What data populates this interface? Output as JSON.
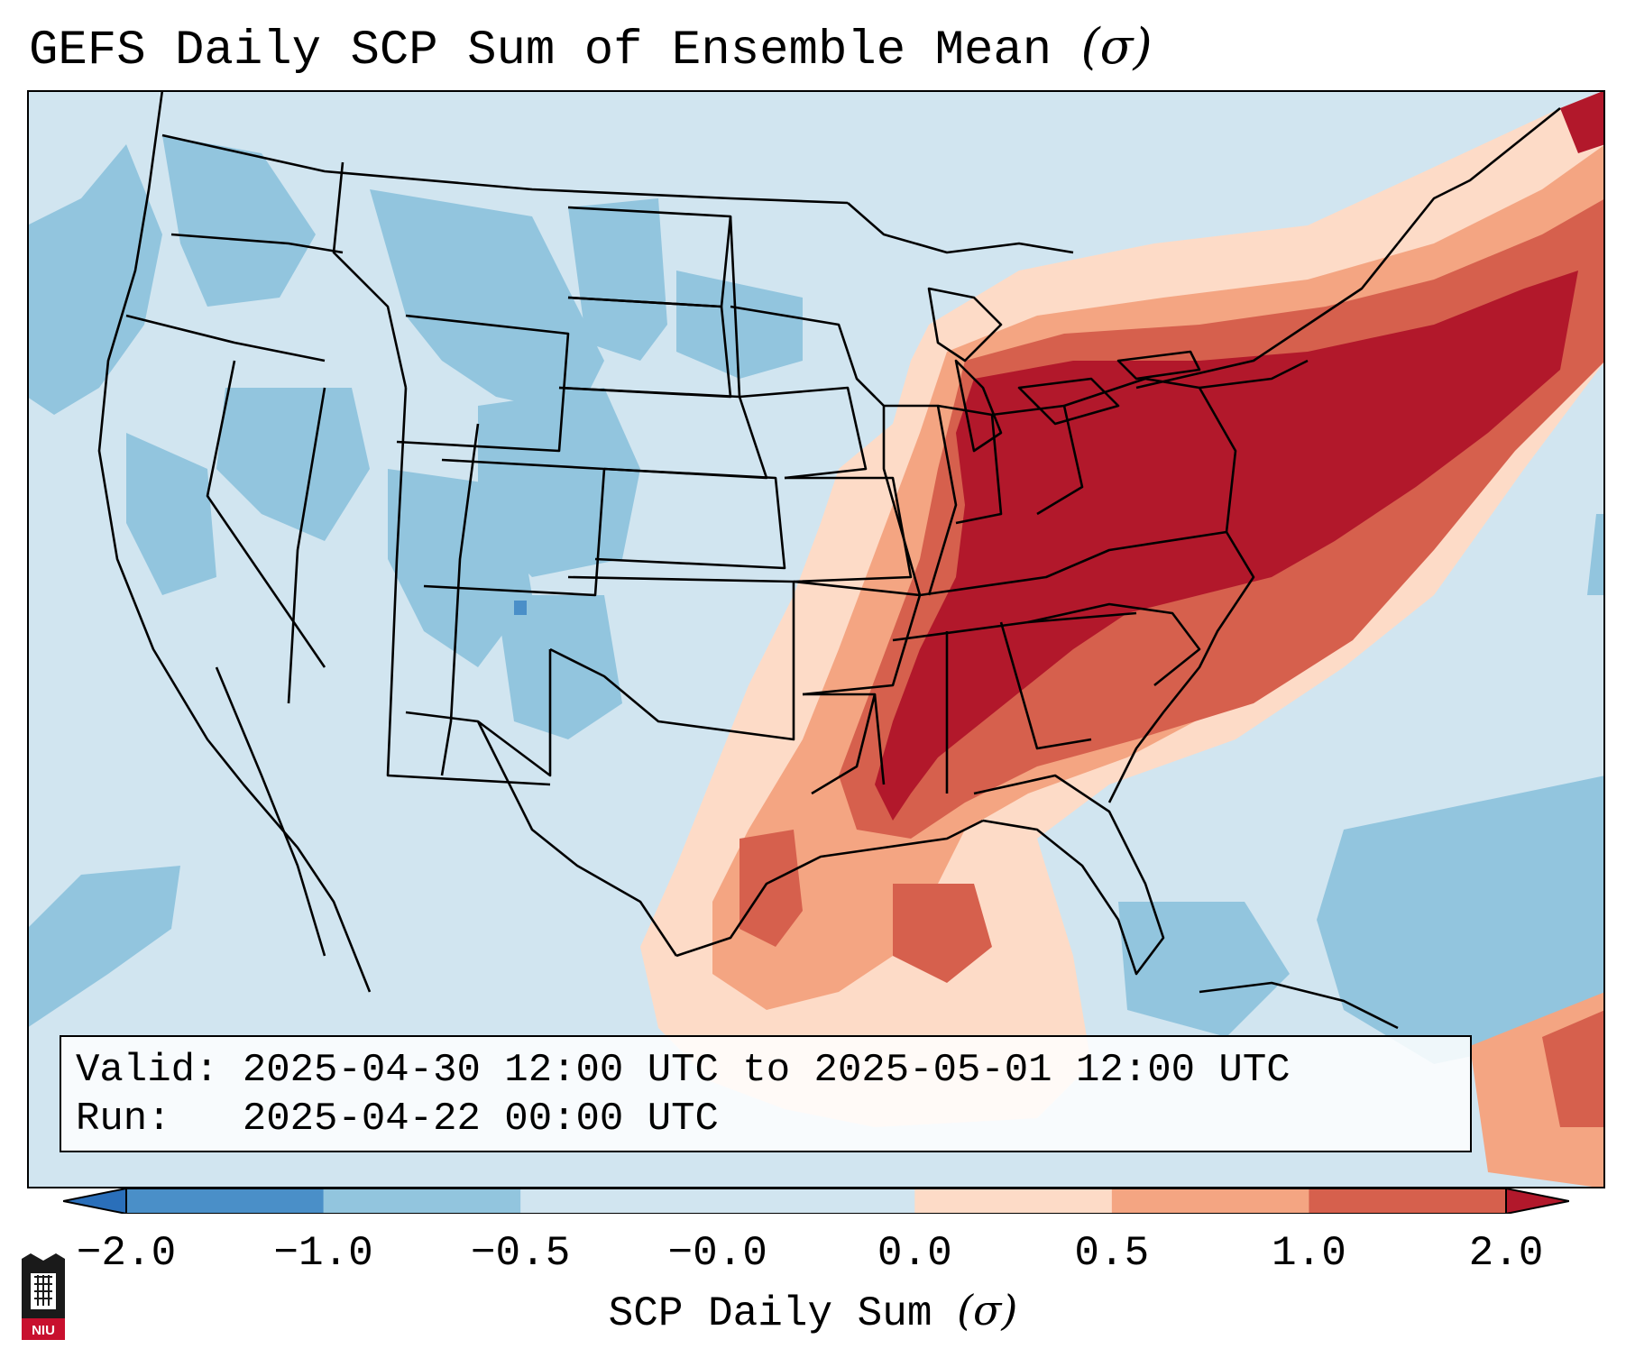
{
  "title": {
    "text": "GEFS Daily SCP Sum of Ensemble Mean",
    "symbol": "(σ)"
  },
  "valid_label": "Valid:",
  "valid_value": "2025-04-30 12:00 UTC to 2025-05-01 12:00 UTC",
  "run_label": "Run:",
  "run_value": "2025-04-22 00:00 UTC",
  "colorbar": {
    "label_text": "SCP Daily Sum",
    "label_symbol": "(σ)",
    "ticks": [
      "−2.0",
      "−1.0",
      "−0.5",
      "−0.0",
      "0.0",
      "0.5",
      "1.0",
      "2.0"
    ],
    "colors": [
      "#2a6fba",
      "#4a8fc8",
      "#92c5de",
      "#d1e5f0",
      "#fddbc7",
      "#f4a582",
      "#d6604d",
      "#b2182b"
    ],
    "extend": "both"
  },
  "logo_text": "NIU",
  "map": {
    "projection": "Lambert conformal, CONUS",
    "field": "SCP daily sum anomaly",
    "background_class": "-0.0 to -0.5",
    "max_region": "Midwest / Ohio Valley / Northeast",
    "colors": {
      "light_blue": "#d1e5f0",
      "mid_blue": "#92c5de",
      "dark_blue": "#4a8fc8",
      "light_red": "#fddbc7",
      "mid_red": "#f4a582",
      "red": "#d6604d",
      "dark_red": "#b2182b",
      "border": "#000000"
    }
  }
}
